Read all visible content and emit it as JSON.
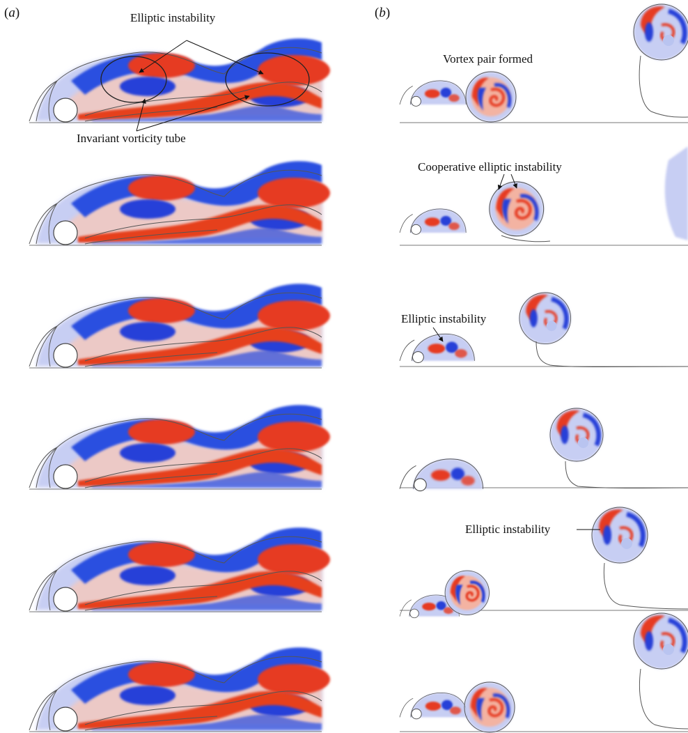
{
  "panel_a": {
    "label_open": "(",
    "label_letter": "a",
    "label_close": ")",
    "annotations": {
      "elliptic_instability": "Elliptic instability",
      "invariant_tube": "Invariant vorticity tube"
    }
  },
  "panel_b": {
    "label_open": "(",
    "label_letter": "b",
    "label_close": ")",
    "annotations": {
      "vortex_pair": "Vortex pair formed",
      "cooperative": "Cooperative elliptic instability",
      "elliptic_1": "Elliptic instability",
      "elliptic_2": "Elliptic instability"
    }
  },
  "colors": {
    "positive_vorticity": "#e8341c",
    "negative_vorticity": "#1f3fd8",
    "light_red": "#f4b7a8",
    "light_blue": "#b9c4f0",
    "contour_line": "#555555"
  },
  "frames_per_panel": 6
}
